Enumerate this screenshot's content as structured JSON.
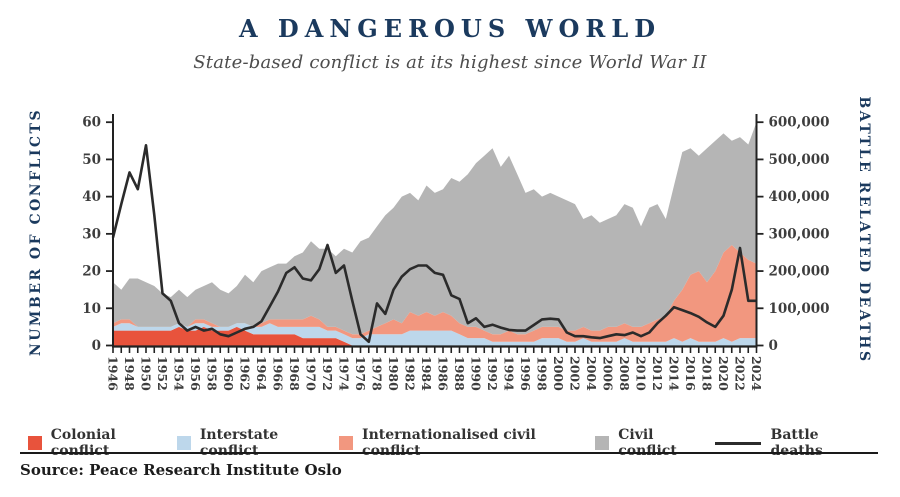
{
  "header": {
    "title": "A DANGEROUS WORLD",
    "subtitle": "State-based conflict is at its highest since World War II"
  },
  "source": {
    "label": "Source: Peace Research Institute Oslo"
  },
  "colors": {
    "colonial": "#e8533c",
    "interstate": "#bdd7eb",
    "internationalised": "#f2977f",
    "civil": "#b5b5b5",
    "battle_deaths_line": "#2b2b2b",
    "axis": "#222222",
    "tick_text": "#3d3d3d",
    "navy": "#1b3a5e"
  },
  "legend": {
    "items": [
      {
        "label": "Colonial conflict",
        "color_key": "colonial",
        "type": "area"
      },
      {
        "label": "Interstate conflict",
        "color_key": "interstate",
        "type": "area"
      },
      {
        "label": "Internationalised civil conflict",
        "color_key": "internationalised",
        "type": "area"
      },
      {
        "label": "Civil conflict",
        "color_key": "civil",
        "type": "area"
      },
      {
        "label": "Battle deaths",
        "color_key": "battle_deaths_line",
        "type": "line"
      }
    ]
  },
  "chart_data": {
    "type": "area",
    "stacked": true,
    "grid": false,
    "legend_position": "bottom",
    "x": {
      "start": 1946,
      "end": 2024,
      "step": 1
    },
    "x_tick_labels": [
      "1946",
      "1948",
      "1950",
      "1952",
      "1954",
      "1956",
      "1958",
      "1960",
      "1962",
      "1964",
      "1966",
      "1968",
      "1970",
      "1972",
      "1974",
      "1976",
      "1978",
      "1980",
      "1982",
      "1984",
      "1986",
      "1988",
      "1990",
      "1992",
      "1994",
      "1996",
      "1998",
      "2000",
      "2002",
      "2004",
      "2006",
      "2008",
      "2010",
      "2012",
      "2014",
      "2016",
      "2018",
      "2020",
      "2022",
      "2024"
    ],
    "y_left": {
      "label": "NUMBER OF CONFLICTS",
      "lim": [
        0,
        60
      ],
      "ticks": [
        0,
        10,
        20,
        30,
        40,
        50,
        60
      ]
    },
    "y_right": {
      "label": "BATTLE RELATED DEATHS",
      "lim": [
        0,
        600000
      ],
      "ticks": [
        0,
        100000,
        200000,
        300000,
        400000,
        500000,
        600000
      ],
      "tick_labels": [
        "0",
        "100,000",
        "200,000",
        "300,000",
        "400,000",
        "500,000",
        "600,000"
      ]
    },
    "series": [
      {
        "name": "Colonial conflict",
        "kind": "area",
        "axis": "left",
        "color_key": "colonial",
        "values": [
          4,
          4,
          4,
          4,
          4,
          4,
          4,
          4,
          5,
          4,
          4,
          5,
          4,
          4,
          4,
          5,
          4,
          3,
          3,
          3,
          3,
          3,
          3,
          2,
          2,
          2,
          2,
          2,
          1,
          0,
          0,
          0,
          0,
          0,
          0,
          0,
          0,
          0,
          0,
          0,
          0,
          0,
          0,
          0,
          0,
          0,
          0,
          0,
          0,
          0,
          0,
          0,
          0,
          0,
          0,
          0,
          0,
          0,
          0,
          0,
          0,
          0,
          0,
          0,
          0,
          0,
          0,
          0,
          0,
          0,
          0,
          0,
          0,
          0,
          0,
          0,
          0,
          0,
          0
        ]
      },
      {
        "name": "Interstate conflict",
        "kind": "area",
        "axis": "left",
        "color_key": "interstate",
        "values": [
          1,
          2,
          2,
          1,
          1,
          1,
          1,
          1,
          1,
          1,
          2,
          1,
          1,
          1,
          1,
          1,
          2,
          2,
          2,
          3,
          2,
          2,
          2,
          3,
          3,
          3,
          2,
          2,
          2,
          2,
          2,
          3,
          3,
          3,
          3,
          3,
          4,
          4,
          4,
          4,
          4,
          4,
          3,
          2,
          2,
          2,
          1,
          1,
          1,
          1,
          1,
          1,
          2,
          2,
          2,
          1,
          1,
          2,
          1,
          1,
          1,
          1,
          2,
          1,
          1,
          1,
          1,
          1,
          2,
          1,
          2,
          1,
          1,
          1,
          2,
          1,
          2,
          2,
          2
        ]
      },
      {
        "name": "Internationalised civil conflict",
        "kind": "area",
        "axis": "left",
        "color_key": "internationalised",
        "values": [
          1,
          1,
          1,
          0,
          0,
          0,
          0,
          0,
          0,
          0,
          1,
          1,
          1,
          0,
          0,
          0,
          0,
          0,
          1,
          1,
          2,
          2,
          2,
          2,
          3,
          2,
          1,
          1,
          1,
          1,
          1,
          1,
          2,
          3,
          4,
          3,
          5,
          4,
          5,
          4,
          5,
          4,
          3,
          3,
          3,
          2,
          2,
          2,
          3,
          2,
          2,
          3,
          3,
          3,
          3,
          3,
          3,
          3,
          3,
          3,
          4,
          4,
          4,
          4,
          4,
          5,
          6,
          7,
          10,
          14,
          17,
          19,
          16,
          19,
          23,
          26,
          23,
          21,
          20
        ]
      },
      {
        "name": "Civil conflict",
        "kind": "area",
        "axis": "left",
        "color_key": "civil",
        "values": [
          11,
          8,
          11,
          13,
          12,
          11,
          9,
          8,
          9,
          8,
          8,
          9,
          11,
          10,
          9,
          10,
          13,
          12,
          14,
          14,
          15,
          15,
          17,
          18,
          20,
          19,
          21,
          19,
          22,
          22,
          25,
          25,
          27,
          29,
          30,
          34,
          32,
          31,
          34,
          33,
          33,
          37,
          38,
          41,
          44,
          47,
          50,
          45,
          47,
          43,
          38,
          38,
          35,
          36,
          35,
          35,
          34,
          29,
          31,
          29,
          29,
          30,
          32,
          32,
          27,
          31,
          31,
          26,
          31,
          37,
          34,
          31,
          36,
          35,
          32,
          28,
          31,
          31,
          38
        ]
      },
      {
        "name": "Battle deaths",
        "kind": "line",
        "axis": "right",
        "color_key": "battle_deaths_line",
        "values_thousands": [
          290,
          380,
          465,
          420,
          538,
          350,
          140,
          120,
          60,
          40,
          50,
          40,
          45,
          30,
          25,
          35,
          45,
          50,
          65,
          105,
          145,
          195,
          210,
          180,
          175,
          205,
          270,
          195,
          215,
          120,
          30,
          10,
          113,
          85,
          150,
          185,
          205,
          215,
          215,
          195,
          190,
          135,
          125,
          60,
          73,
          50,
          56,
          48,
          42,
          40,
          40,
          55,
          70,
          72,
          70,
          35,
          25,
          25,
          22,
          20,
          25,
          30,
          28,
          35,
          25,
          35,
          60,
          80,
          103,
          95,
          87,
          77,
          62,
          50,
          80,
          150,
          262,
          120,
          120
        ]
      }
    ]
  }
}
